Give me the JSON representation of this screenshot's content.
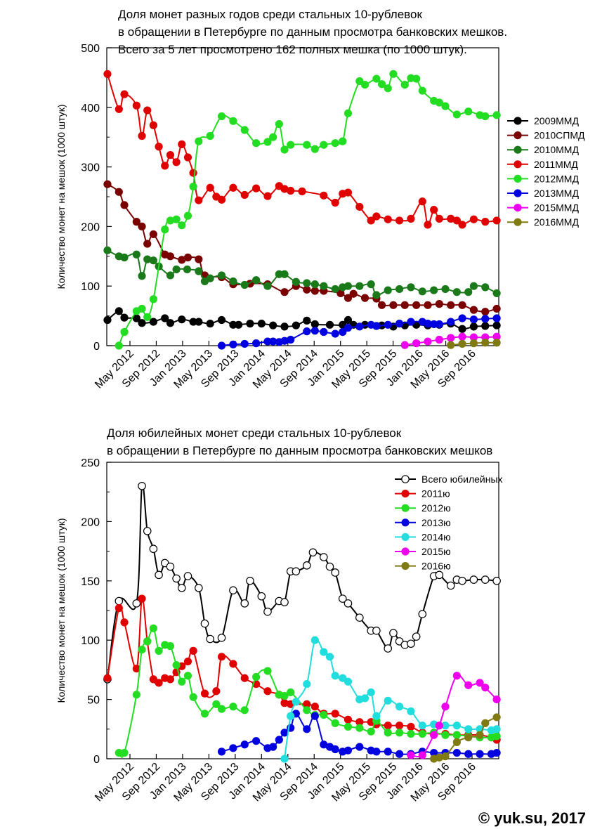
{
  "copyright": "© yuk.su, 2017",
  "chart_data": [
    {
      "type": "line",
      "title_lines": [
        "Доля монет разных годов среди стальных 10-рублевок",
        "в обращении в Петербурге по данным просмотра банковских мешков.",
        "Всего за 5 лет просмотрено 162 полных мешка (по 1000 штук)."
      ],
      "xlabel": "",
      "ylabel": "Количество монет на мешок (1000 штук)",
      "x_ticks": [
        "May 2012",
        "Sep 2012",
        "Jan 2013",
        "May 2013",
        "Sep 2013",
        "Jan 2014",
        "May 2014",
        "Sep 2014",
        "Jan 2015",
        "May 2015",
        "Sep 2015",
        "Jan 2016",
        "May 2016",
        "Sep 2016"
      ],
      "ylim": [
        0,
        500
      ],
      "y_ticks": [
        0,
        100,
        200,
        300,
        400,
        500
      ],
      "xlim": [
        0,
        58
      ],
      "grid": false,
      "legend_position": "right",
      "series": [
        {
          "name": "2009ММД",
          "color": "#000000",
          "x": [
            0.1,
            1.8,
            2.6,
            4.4,
            5.2,
            6.9,
            8.6,
            9.4,
            11.1,
            12.8,
            13.6,
            15.3,
            17.0,
            18.7,
            19.5,
            21.2,
            22.9,
            24.6,
            26.3,
            28.0,
            29.6,
            30.8,
            33.0,
            34.9,
            35.7,
            36.5,
            38.2,
            39.9,
            40.7,
            42.4,
            44.1,
            45.8,
            47.5,
            49.2,
            50.9,
            52.6,
            54.3,
            56.0,
            57.7
          ],
          "y": [
            43,
            58,
            47,
            46,
            38,
            40,
            46,
            38,
            44,
            40,
            40,
            37,
            43,
            35,
            35,
            37,
            37,
            34,
            32,
            34,
            42,
            36,
            35,
            35,
            43,
            35,
            35,
            33,
            34,
            32,
            34,
            35,
            34,
            35,
            37,
            28,
            32,
            33,
            34
          ]
        },
        {
          "name": "2010СПМД",
          "color": "#7a0000",
          "x": [
            0.1,
            1.8,
            2.6,
            4.4,
            5.2,
            6.0,
            6.9,
            8.6,
            9.4,
            11.1,
            12.0,
            13.6,
            14.5,
            17.0,
            18.7,
            21.2,
            23.8,
            26.3,
            28.0,
            29.6,
            30.8,
            32.1,
            34.6,
            35.7,
            36.5,
            38.2,
            39.9,
            40.7,
            42.4,
            44.1,
            45.8,
            47.5,
            49.2,
            50.9,
            52.6,
            54.3,
            56.0,
            57.7
          ],
          "y": [
            271,
            258,
            236,
            208,
            200,
            171,
            187,
            153,
            150,
            144,
            148,
            145,
            118,
            115,
            103,
            104,
            103,
            90,
            100,
            94,
            92,
            92,
            88,
            80,
            87,
            80,
            79,
            68,
            68,
            68,
            68,
            68,
            70,
            68,
            68,
            60,
            57,
            62
          ]
        },
        {
          "name": "2010ММД",
          "color": "#1a7a1a",
          "x": [
            0.1,
            1.8,
            2.6,
            4.4,
            5.2,
            6.0,
            6.9,
            7.7,
            9.4,
            10.3,
            11.9,
            13.6,
            14.5,
            15.3,
            17.0,
            18.7,
            20.4,
            22.1,
            23.8,
            25.5,
            26.3,
            28.0,
            29.6,
            30.8,
            32.1,
            33.8,
            34.9,
            35.7,
            37.4,
            39.1,
            39.9,
            41.6,
            43.3,
            45.0,
            46.7,
            48.4,
            50.1,
            51.8,
            53.5,
            54.3,
            56.0,
            57.7
          ],
          "y": [
            160,
            150,
            148,
            153,
            117,
            145,
            143,
            133,
            118,
            128,
            128,
            125,
            108,
            113,
            118,
            108,
            102,
            110,
            100,
            120,
            120,
            107,
            105,
            103,
            100,
            95,
            98,
            100,
            100,
            103,
            85,
            93,
            95,
            98,
            91,
            93,
            95,
            90,
            90,
            100,
            98,
            88
          ]
        },
        {
          "name": "2011ММД",
          "color": "#e00000",
          "x": [
            0.1,
            1.8,
            2.6,
            4.4,
            5.2,
            6.0,
            6.9,
            7.7,
            8.6,
            9.4,
            10.3,
            11.1,
            12.0,
            12.8,
            13.6,
            15.3,
            16.2,
            17.0,
            18.7,
            20.4,
            22.1,
            23.8,
            25.5,
            26.3,
            27.2,
            28.9,
            32.1,
            33.8,
            34.9,
            35.7,
            37.4,
            39.1,
            39.9,
            41.6,
            43.3,
            45.0,
            46.7,
            47.5,
            48.4,
            49.2,
            50.9,
            51.8,
            52.6,
            54.3,
            56.0,
            57.7
          ],
          "y": [
            456,
            397,
            422,
            403,
            352,
            395,
            370,
            334,
            302,
            320,
            308,
            338,
            316,
            290,
            244,
            265,
            250,
            245,
            265,
            253,
            264,
            251,
            268,
            263,
            260,
            259,
            252,
            240,
            255,
            257,
            233,
            210,
            217,
            212,
            210,
            213,
            242,
            203,
            228,
            213,
            213,
            210,
            203,
            212,
            208,
            210
          ]
        },
        {
          "name": "2012ММД",
          "color": "#22dd22",
          "x": [
            1.8,
            2.6,
            4.4,
            5.2,
            6.0,
            6.9,
            8.6,
            9.4,
            10.3,
            11.1,
            12.0,
            12.8,
            13.6,
            15.3,
            17.0,
            18.7,
            20.4,
            22.1,
            23.8,
            24.6,
            25.5,
            26.3,
            27.2,
            29.6,
            30.8,
            32.1,
            33.8,
            34.9,
            35.7,
            37.4,
            38.2,
            39.9,
            40.7,
            41.6,
            42.4,
            44.1,
            45.0,
            45.8,
            46.7,
            48.4,
            49.2,
            50.1,
            51.8,
            53.5,
            55.2,
            56.0,
            57.7
          ],
          "y": [
            0,
            23,
            58,
            62,
            48,
            78,
            195,
            210,
            212,
            202,
            218,
            267,
            343,
            352,
            385,
            377,
            362,
            340,
            342,
            350,
            372,
            329,
            337,
            337,
            330,
            337,
            340,
            343,
            390,
            444,
            438,
            448,
            439,
            432,
            456,
            438,
            449,
            448,
            428,
            411,
            408,
            402,
            388,
            393,
            387,
            385,
            387
          ]
        },
        {
          "name": "2013ММД",
          "color": "#0000e0",
          "x": [
            17.0,
            18.7,
            20.4,
            22.1,
            23.8,
            24.6,
            25.5,
            26.3,
            27.2,
            29.6,
            30.8,
            32.1,
            33.8,
            34.9,
            35.7,
            37.4,
            39.1,
            39.9,
            41.6,
            43.3,
            45.0,
            46.7,
            47.5,
            48.4,
            49.2,
            50.9,
            52.6,
            54.3,
            56.0,
            57.7
          ],
          "y": [
            0,
            2,
            3,
            4,
            7,
            7,
            6,
            8,
            10,
            24,
            25,
            23,
            20,
            23,
            30,
            32,
            35,
            33,
            35,
            37,
            40,
            40,
            37,
            36,
            36,
            40,
            46,
            44,
            45,
            46
          ]
        },
        {
          "name": "2015ММД",
          "color": "#ee00ee",
          "x": [
            44.1,
            45.8,
            47.5,
            49.2,
            50.9,
            52.6,
            54.3,
            56.0,
            57.7
          ],
          "y": [
            1,
            4,
            7,
            10,
            13,
            15,
            14,
            14,
            15
          ]
        },
        {
          "name": "2016ММД",
          "color": "#807a12",
          "x": [
            50.9,
            52.6,
            54.3,
            56.0,
            57.7
          ],
          "y": [
            1,
            3,
            4,
            5,
            5
          ]
        }
      ]
    },
    {
      "type": "line",
      "title_lines": [
        "Доля юбилейных монет среди стальных 10-рублевок",
        "в обращении в Петербурге по данным просмотра банковских мешков"
      ],
      "xlabel": "",
      "ylabel": "Количество монет на мешок (1000 штук)",
      "x_ticks": [
        "May 2012",
        "Sep 2012",
        "Jan 2013",
        "May 2013",
        "Sep 2013",
        "Jan 2014",
        "May 2014",
        "Sep 2014",
        "Jan 2015",
        "May 2015",
        "Sep 2015",
        "Jan 2016",
        "May 2016",
        "Sep 2016"
      ],
      "ylim": [
        0,
        250
      ],
      "y_ticks": [
        0,
        50,
        100,
        150,
        200,
        250
      ],
      "xlim": [
        0,
        58
      ],
      "grid": false,
      "legend_position": "top-right",
      "series": [
        {
          "name": "Всего юбилейных",
          "color": "#000000",
          "hollow": true,
          "x": [
            0.1,
            1.8,
            4.4,
            5.2,
            6.0,
            6.9,
            7.7,
            8.6,
            9.4,
            10.3,
            11.1,
            12.0,
            13.6,
            14.5,
            15.3,
            17.0,
            18.7,
            20.4,
            21.2,
            22.9,
            23.8,
            25.5,
            26.3,
            27.2,
            28.0,
            29.6,
            30.5,
            32.1,
            33.0,
            33.8,
            34.9,
            35.7,
            37.4,
            39.1,
            39.9,
            41.6,
            42.4,
            43.3,
            44.1,
            45.0,
            45.8,
            46.7,
            48.4,
            49.2,
            50.9,
            51.8,
            52.6,
            54.3,
            56.0,
            57.7
          ],
          "y": [
            67,
            133,
            131,
            230,
            192,
            177,
            155,
            165,
            162,
            152,
            144,
            154,
            144,
            114,
            101,
            102,
            142,
            131,
            150,
            137,
            124,
            133,
            132,
            158,
            158,
            163,
            174,
            170,
            162,
            157,
            135,
            131,
            119,
            108,
            108,
            93,
            106,
            99,
            96,
            97,
            103,
            122,
            154,
            155,
            146,
            151,
            150,
            151,
            151,
            150
          ]
        },
        {
          "name": "2011ю",
          "color": "#e00000",
          "x": [
            0.1,
            1.8,
            2.6,
            4.4,
            5.2,
            6.0,
            6.9,
            7.7,
            8.6,
            9.4,
            10.3,
            11.1,
            12.0,
            12.8,
            14.5,
            16.2,
            17.0,
            18.7,
            20.4,
            22.1,
            23.8,
            25.5,
            26.3,
            27.2,
            29.6,
            30.8,
            32.1,
            33.8,
            35.7,
            37.4,
            39.1,
            39.9,
            41.6,
            43.3,
            45.0,
            46.7,
            48.4,
            50.1,
            51.8,
            53.5,
            55.2,
            56.9,
            57.7
          ],
          "y": [
            68,
            127,
            115,
            76,
            135,
            99,
            67,
            64,
            68,
            67,
            73,
            78,
            82,
            91,
            55,
            57,
            86,
            80,
            68,
            63,
            57,
            54,
            47,
            46,
            46,
            44,
            38,
            38,
            33,
            31,
            31,
            29,
            28,
            28,
            27,
            22,
            21,
            21,
            20,
            20,
            20,
            18,
            16
          ]
        },
        {
          "name": "2012ю",
          "color": "#22dd22",
          "x": [
            1.8,
            2.6,
            4.4,
            5.2,
            6.0,
            6.9,
            7.7,
            8.6,
            9.4,
            10.3,
            11.1,
            12.0,
            12.8,
            14.5,
            16.2,
            17.0,
            18.7,
            20.4,
            22.1,
            23.8,
            25.5,
            26.3,
            27.2,
            29.6,
            30.8,
            32.1,
            33.8,
            35.7,
            37.4,
            39.1,
            39.9,
            41.6,
            43.3,
            45.0,
            46.7,
            48.4,
            50.1,
            51.8,
            53.5,
            55.2,
            56.9,
            57.7
          ],
          "y": [
            5,
            5,
            54,
            92,
            99,
            110,
            91,
            96,
            95,
            79,
            65,
            70,
            52,
            38,
            46,
            42,
            44,
            41,
            69,
            74,
            54,
            53,
            56,
            41,
            37,
            37,
            30,
            27,
            26,
            23,
            32,
            22,
            22,
            21,
            21,
            22,
            20,
            20,
            19,
            18,
            18,
            19
          ]
        },
        {
          "name": "2013ю",
          "color": "#0000e0",
          "x": [
            17.0,
            18.7,
            20.4,
            22.1,
            23.8,
            24.6,
            25.5,
            26.3,
            27.2,
            28.0,
            29.6,
            30.8,
            32.1,
            33.0,
            33.8,
            34.9,
            35.7,
            37.4,
            39.1,
            39.9,
            41.6,
            43.3,
            45.0,
            46.7,
            48.4,
            50.1,
            51.8,
            53.5,
            55.2,
            56.9,
            57.7
          ],
          "y": [
            6,
            9,
            12,
            15,
            9,
            10,
            16,
            22,
            26,
            38,
            25,
            36,
            12,
            10,
            8,
            6,
            7,
            10,
            7,
            6,
            6,
            4,
            4,
            6,
            5,
            5,
            5,
            4,
            4,
            4,
            5
          ]
        },
        {
          "name": "2014ю",
          "color": "#22dddd",
          "x": [
            26.3,
            27.2,
            28.0,
            29.6,
            30.8,
            32.1,
            33.0,
            33.8,
            34.9,
            35.7,
            37.4,
            38.2,
            39.1,
            39.9,
            41.6,
            43.3,
            45.0,
            46.7,
            48.4,
            50.1,
            51.8,
            53.5,
            55.2,
            56.9,
            57.7
          ],
          "y": [
            0,
            36,
            48,
            63,
            100,
            90,
            86,
            70,
            68,
            65,
            50,
            51,
            56,
            36,
            49,
            44,
            40,
            28,
            29,
            28,
            28,
            25,
            25,
            24,
            25
          ]
        },
        {
          "name": "2015ю",
          "color": "#ee00ee",
          "x": [
            45.0,
            46.7,
            48.4,
            49.2,
            50.1,
            51.8,
            53.5,
            55.2,
            56.0,
            57.7
          ],
          "y": [
            3,
            3,
            20,
            28,
            44,
            70,
            62,
            64,
            60,
            50
          ]
        },
        {
          "name": "2016ю",
          "color": "#807a12",
          "x": [
            48.4,
            49.2,
            50.1,
            51.8,
            53.5,
            55.2,
            56.0,
            57.7
          ],
          "y": [
            0,
            1,
            2,
            14,
            18,
            20,
            30,
            35
          ]
        }
      ]
    }
  ]
}
